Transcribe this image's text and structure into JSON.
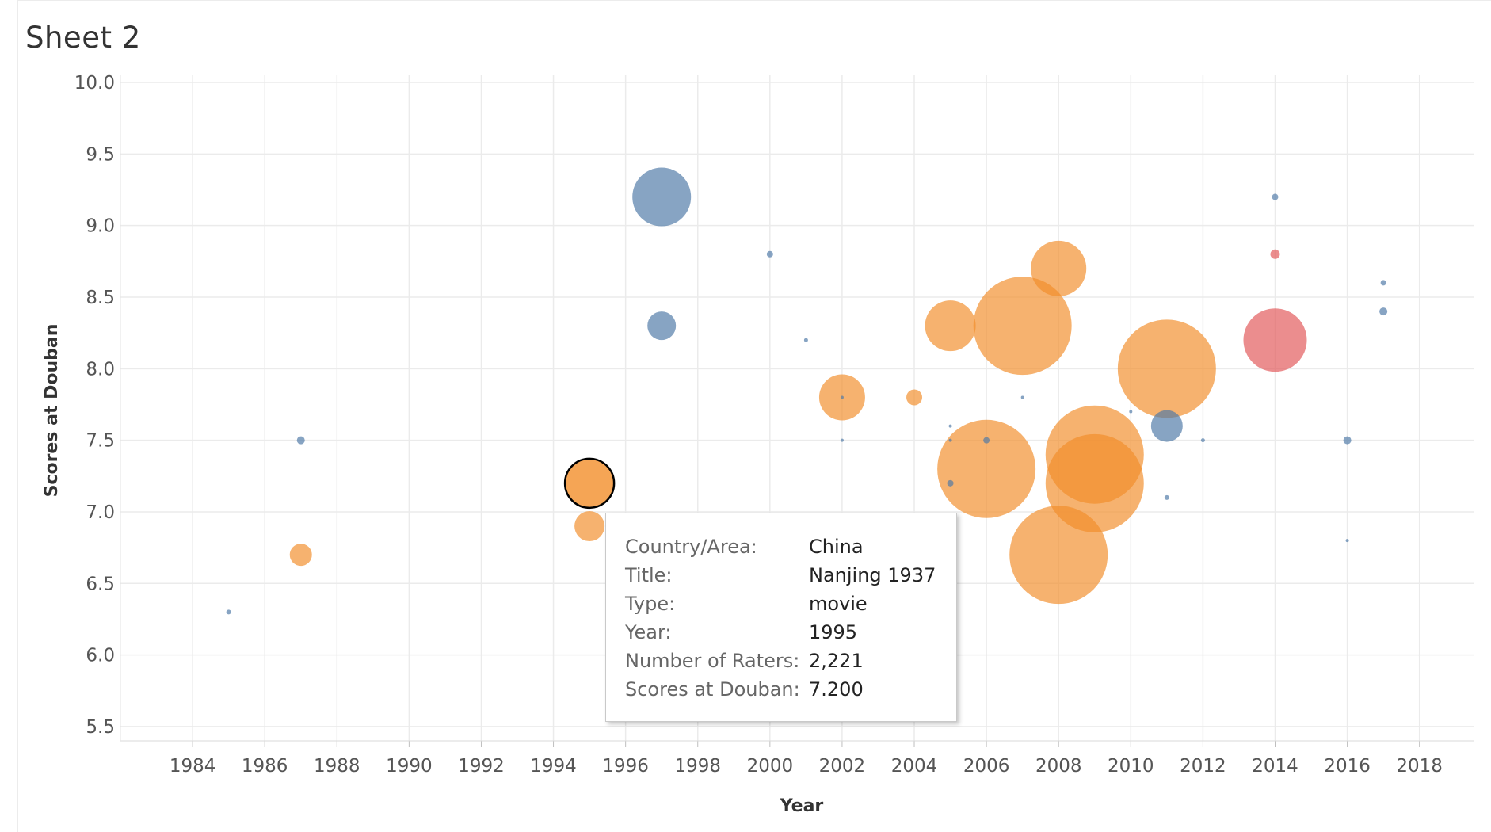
{
  "sheet": {
    "title": "Sheet 2"
  },
  "colors": {
    "China": "#f28e2b",
    "Other_blue": "#4e79a7",
    "Other_red": "#e15759",
    "grid": "#ebebeb",
    "highlight_outline": "#000000"
  },
  "chart_data": {
    "type": "scatter",
    "title": "",
    "xlabel": "Year",
    "ylabel": "Scores at Douban",
    "xlim": [
      1982,
      2019.5
    ],
    "ylim": [
      5.4,
      10.05
    ],
    "x_ticks": [
      1984,
      1986,
      1988,
      1990,
      1992,
      1994,
      1996,
      1998,
      2000,
      2002,
      2004,
      2006,
      2008,
      2010,
      2012,
      2014,
      2016,
      2018
    ],
    "y_ticks": [
      5.5,
      6.0,
      6.5,
      7.0,
      7.5,
      8.0,
      8.5,
      9.0,
      9.5,
      10.0
    ],
    "y_tick_labels": [
      "5.5",
      "6.0",
      "6.5",
      "7.0",
      "7.5",
      "8.0",
      "8.5",
      "9.0",
      "9.5",
      "10.0"
    ],
    "grid": true,
    "legend": "none",
    "size_measure": "Number of Raters",
    "points": [
      {
        "x": 1985,
        "y": 6.3,
        "size": 3,
        "color": "blue"
      },
      {
        "x": 1987,
        "y": 7.5,
        "size": 5,
        "color": "blue"
      },
      {
        "x": 1987,
        "y": 6.7,
        "size": 14,
        "color": "orange"
      },
      {
        "x": 1995,
        "y": 6.9,
        "size": 19,
        "color": "orange"
      },
      {
        "x": 1995,
        "y": 7.2,
        "size": 31,
        "color": "orange",
        "highlight": true
      },
      {
        "x": 1997,
        "y": 9.2,
        "size": 37,
        "color": "blue"
      },
      {
        "x": 1997,
        "y": 8.3,
        "size": 18,
        "color": "blue"
      },
      {
        "x": 2000,
        "y": 8.8,
        "size": 4,
        "color": "blue"
      },
      {
        "x": 2001,
        "y": 8.2,
        "size": 2.5,
        "color": "blue"
      },
      {
        "x": 2002,
        "y": 7.8,
        "size": 29,
        "color": "orange"
      },
      {
        "x": 2002,
        "y": 7.8,
        "size": 2,
        "color": "blue"
      },
      {
        "x": 2002,
        "y": 7.5,
        "size": 2,
        "color": "blue"
      },
      {
        "x": 2004,
        "y": 7.8,
        "size": 10,
        "color": "orange"
      },
      {
        "x": 2005,
        "y": 8.3,
        "size": 32,
        "color": "orange"
      },
      {
        "x": 2005,
        "y": 7.6,
        "size": 2,
        "color": "blue"
      },
      {
        "x": 2005,
        "y": 7.5,
        "size": 2,
        "color": "blue"
      },
      {
        "x": 2005,
        "y": 7.2,
        "size": 4,
        "color": "blue"
      },
      {
        "x": 2006,
        "y": 7.3,
        "size": 62,
        "color": "orange"
      },
      {
        "x": 2006,
        "y": 7.5,
        "size": 4,
        "color": "blue"
      },
      {
        "x": 2007,
        "y": 8.3,
        "size": 62,
        "color": "orange"
      },
      {
        "x": 2007,
        "y": 7.8,
        "size": 2,
        "color": "blue"
      },
      {
        "x": 2008,
        "y": 8.7,
        "size": 35,
        "color": "orange"
      },
      {
        "x": 2008,
        "y": 6.7,
        "size": 62,
        "color": "orange"
      },
      {
        "x": 2009,
        "y": 7.4,
        "size": 62,
        "color": "orange"
      },
      {
        "x": 2009,
        "y": 7.2,
        "size": 62,
        "color": "orange"
      },
      {
        "x": 2010,
        "y": 7.7,
        "size": 2,
        "color": "blue"
      },
      {
        "x": 2011,
        "y": 8.0,
        "size": 62,
        "color": "orange"
      },
      {
        "x": 2011,
        "y": 7.6,
        "size": 20,
        "color": "blue"
      },
      {
        "x": 2011,
        "y": 7.1,
        "size": 3,
        "color": "blue"
      },
      {
        "x": 2012,
        "y": 7.5,
        "size": 2.5,
        "color": "blue"
      },
      {
        "x": 2014,
        "y": 9.2,
        "size": 4,
        "color": "blue"
      },
      {
        "x": 2014,
        "y": 8.8,
        "size": 6,
        "color": "red"
      },
      {
        "x": 2014,
        "y": 8.2,
        "size": 40,
        "color": "red"
      },
      {
        "x": 2016,
        "y": 7.5,
        "size": 5,
        "color": "blue"
      },
      {
        "x": 2016,
        "y": 6.8,
        "size": 2,
        "color": "blue"
      },
      {
        "x": 2017,
        "y": 8.6,
        "size": 3.5,
        "color": "blue"
      },
      {
        "x": 2017,
        "y": 8.4,
        "size": 5,
        "color": "blue"
      }
    ]
  },
  "tooltip": {
    "rows": [
      {
        "label": "Country/Area:",
        "value": "China"
      },
      {
        "label": "Title:",
        "value": "Nanjing 1937"
      },
      {
        "label": "Type:",
        "value": "movie"
      },
      {
        "label": "Year:",
        "value": "1995"
      },
      {
        "label": "Number of Raters:",
        "value": "2,221"
      },
      {
        "label": "Scores at Douban:",
        "value": "7.200"
      }
    ]
  }
}
